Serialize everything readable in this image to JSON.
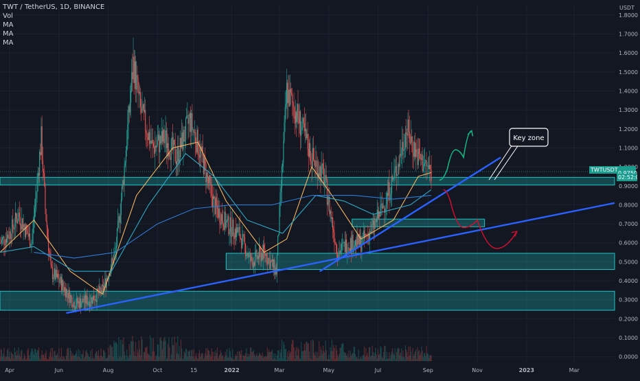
{
  "header": {
    "symbol_line": "TWT / TetherUS, 1D, BINANCE",
    "indicators": [
      "Vol",
      "MA",
      "MA",
      "MA"
    ]
  },
  "price_axis": {
    "unit": "USDT",
    "ticks": [
      "1.8000",
      "1.7000",
      "1.6000",
      "1.5000",
      "1.4000",
      "1.3000",
      "1.2000",
      "1.1000",
      "1.0000",
      "0.9000",
      "0.8000",
      "0.7000",
      "0.6000",
      "0.5000",
      "0.4000",
      "0.3000",
      "0.2000",
      "0.1000",
      "0.0000"
    ]
  },
  "time_axis": {
    "ticks": [
      "Apr",
      "Jun",
      "Aug",
      "Oct",
      "15",
      "2022",
      "Mar",
      "May",
      "Jul",
      "Sep",
      "Nov",
      "2023",
      "Mar"
    ]
  },
  "current_price": {
    "symbol": "TWTUSDT",
    "price": "0.9750",
    "countdown": "02:52:05"
  },
  "annotation": {
    "callout_text": "Key zone"
  },
  "colors": {
    "background": "#131722",
    "bull": "#26a69a",
    "bear": "#ef5350",
    "zone": "#21c7c7",
    "trendline": "#2962ff",
    "ma_short": "#f5b461",
    "ma_mid": "#2fa9c7",
    "ma_long": "#2e7bd6",
    "projection_up": "#15b27f",
    "projection_down": "#c8102e"
  },
  "chart_data": {
    "type": "candlestick",
    "title": "TWT / TetherUS, 1D, BINANCE",
    "ylabel": "USDT",
    "ylim": [
      -0.03,
      1.85
    ],
    "x_range": [
      "2021-03-20",
      "2023-04-20"
    ],
    "price_path": [
      {
        "date": "2021-03-20",
        "price": 0.6
      },
      {
        "date": "2021-04-01",
        "price": 0.65
      },
      {
        "date": "2021-04-12",
        "price": 0.75
      },
      {
        "date": "2021-04-28",
        "price": 0.6
      },
      {
        "date": "2021-05-10",
        "price": 1.15
      },
      {
        "date": "2021-05-15",
        "price": 0.78
      },
      {
        "date": "2021-05-22",
        "price": 0.45
      },
      {
        "date": "2021-06-05",
        "price": 0.38
      },
      {
        "date": "2021-06-20",
        "price": 0.28
      },
      {
        "date": "2021-07-10",
        "price": 0.3
      },
      {
        "date": "2021-07-25",
        "price": 0.35
      },
      {
        "date": "2021-08-10",
        "price": 0.55
      },
      {
        "date": "2021-08-20",
        "price": 0.95
      },
      {
        "date": "2021-09-01",
        "price": 1.55
      },
      {
        "date": "2021-09-10",
        "price": 1.3
      },
      {
        "date": "2021-09-25",
        "price": 1.1
      },
      {
        "date": "2021-10-10",
        "price": 1.15
      },
      {
        "date": "2021-10-25",
        "price": 1.05
      },
      {
        "date": "2021-11-10",
        "price": 1.25
      },
      {
        "date": "2021-11-25",
        "price": 1.05
      },
      {
        "date": "2021-12-10",
        "price": 0.8
      },
      {
        "date": "2021-12-25",
        "price": 0.7
      },
      {
        "date": "2022-01-10",
        "price": 0.65
      },
      {
        "date": "2022-01-25",
        "price": 0.5
      },
      {
        "date": "2022-02-10",
        "price": 0.55
      },
      {
        "date": "2022-02-25",
        "price": 0.45
      },
      {
        "date": "2022-03-10",
        "price": 1.4
      },
      {
        "date": "2022-03-25",
        "price": 1.25
      },
      {
        "date": "2022-04-10",
        "price": 1.05
      },
      {
        "date": "2022-04-25",
        "price": 0.95
      },
      {
        "date": "2022-05-12",
        "price": 0.55
      },
      {
        "date": "2022-05-25",
        "price": 0.6
      },
      {
        "date": "2022-06-10",
        "price": 0.6
      },
      {
        "date": "2022-06-25",
        "price": 0.68
      },
      {
        "date": "2022-07-10",
        "price": 0.82
      },
      {
        "date": "2022-07-25",
        "price": 1.0
      },
      {
        "date": "2022-08-05",
        "price": 1.2
      },
      {
        "date": "2022-08-20",
        "price": 1.05
      },
      {
        "date": "2022-09-05",
        "price": 0.975
      }
    ],
    "moving_averages": [
      {
        "name": "MA",
        "values": [
          {
            "date": "2021-03-20",
            "price": 0.55
          },
          {
            "date": "2021-05-01",
            "price": 0.72
          },
          {
            "date": "2021-06-15",
            "price": 0.45
          },
          {
            "date": "2021-07-25",
            "price": 0.33
          },
          {
            "date": "2021-09-05",
            "price": 0.85
          },
          {
            "date": "2021-10-20",
            "price": 1.1
          },
          {
            "date": "2021-11-20",
            "price": 1.13
          },
          {
            "date": "2021-12-25",
            "price": 0.82
          },
          {
            "date": "2022-02-10",
            "price": 0.55
          },
          {
            "date": "2022-03-10",
            "price": 0.62
          },
          {
            "date": "2022-04-10",
            "price": 1.0
          },
          {
            "date": "2022-05-10",
            "price": 0.82
          },
          {
            "date": "2022-06-10",
            "price": 0.62
          },
          {
            "date": "2022-07-20",
            "price": 0.72
          },
          {
            "date": "2022-08-20",
            "price": 0.95
          },
          {
            "date": "2022-09-05",
            "price": 0.97
          }
        ]
      },
      {
        "name": "MA",
        "values": [
          {
            "date": "2021-03-20",
            "price": 0.55
          },
          {
            "date": "2021-05-01",
            "price": 0.58
          },
          {
            "date": "2021-06-20",
            "price": 0.45
          },
          {
            "date": "2021-08-05",
            "price": 0.45
          },
          {
            "date": "2021-09-20",
            "price": 0.8
          },
          {
            "date": "2021-11-05",
            "price": 1.07
          },
          {
            "date": "2021-12-10",
            "price": 0.95
          },
          {
            "date": "2022-01-20",
            "price": 0.72
          },
          {
            "date": "2022-03-05",
            "price": 0.65
          },
          {
            "date": "2022-04-15",
            "price": 0.85
          },
          {
            "date": "2022-05-20",
            "price": 0.82
          },
          {
            "date": "2022-06-25",
            "price": 0.75
          },
          {
            "date": "2022-08-10",
            "price": 0.8
          },
          {
            "date": "2022-09-05",
            "price": 0.88
          }
        ]
      },
      {
        "name": "MA",
        "values": [
          {
            "date": "2021-05-01",
            "price": 0.55
          },
          {
            "date": "2021-06-20",
            "price": 0.52
          },
          {
            "date": "2021-08-10",
            "price": 0.55
          },
          {
            "date": "2021-10-01",
            "price": 0.7
          },
          {
            "date": "2021-11-15",
            "price": 0.78
          },
          {
            "date": "2022-01-01",
            "price": 0.8
          },
          {
            "date": "2022-02-20",
            "price": 0.8
          },
          {
            "date": "2022-04-10",
            "price": 0.85
          },
          {
            "date": "2022-06-01",
            "price": 0.85
          },
          {
            "date": "2022-07-20",
            "price": 0.83
          },
          {
            "date": "2022-09-05",
            "price": 0.85
          }
        ]
      }
    ],
    "horizontal_zones": [
      {
        "from": "2021-03-20",
        "to": "2023-04-20",
        "low": 0.905,
        "high": 0.945
      },
      {
        "from": "2022-05-30",
        "to": "2022-11-10",
        "low": 0.685,
        "high": 0.725
      },
      {
        "from": "2021-12-25",
        "to": "2023-04-20",
        "low": 0.46,
        "high": 0.545
      },
      {
        "from": "2021-03-20",
        "to": "2023-04-20",
        "low": 0.245,
        "high": 0.345
      }
    ],
    "trendlines": [
      {
        "from": {
          "date": "2021-06-10",
          "price": 0.23
        },
        "to": {
          "date": "2023-04-20",
          "price": 0.81
        }
      },
      {
        "from": {
          "date": "2022-04-20",
          "price": 0.45
        },
        "to": {
          "date": "2022-11-30",
          "price": 1.05
        }
      }
    ],
    "projections": [
      {
        "direction": "up",
        "path": [
          {
            "date": "2022-09-15",
            "price": 0.93
          },
          {
            "date": "2022-09-25",
            "price": 0.99
          },
          {
            "date": "2022-10-05",
            "price": 1.09
          },
          {
            "date": "2022-10-15",
            "price": 1.05
          },
          {
            "date": "2022-10-25",
            "price": 1.19
          }
        ]
      },
      {
        "direction": "down",
        "path": [
          {
            "date": "2022-09-20",
            "price": 0.88
          },
          {
            "date": "2022-10-01",
            "price": 0.78
          },
          {
            "date": "2022-10-15",
            "price": 0.68
          },
          {
            "date": "2022-11-01",
            "price": 0.72
          },
          {
            "date": "2022-11-25",
            "price": 0.57
          },
          {
            "date": "2022-12-20",
            "price": 0.66
          }
        ]
      }
    ],
    "volume_profile": [
      {
        "from": "2021-03-20",
        "to": "2021-08-01",
        "relative": 0.3
      },
      {
        "from": "2021-08-01",
        "to": "2021-11-01",
        "relative": 0.6
      },
      {
        "from": "2021-11-01",
        "to": "2022-03-01",
        "relative": 0.3
      },
      {
        "from": "2022-03-01",
        "to": "2022-05-20",
        "relative": 0.5
      },
      {
        "from": "2022-05-20",
        "to": "2022-09-05",
        "relative": 0.35
      }
    ]
  }
}
